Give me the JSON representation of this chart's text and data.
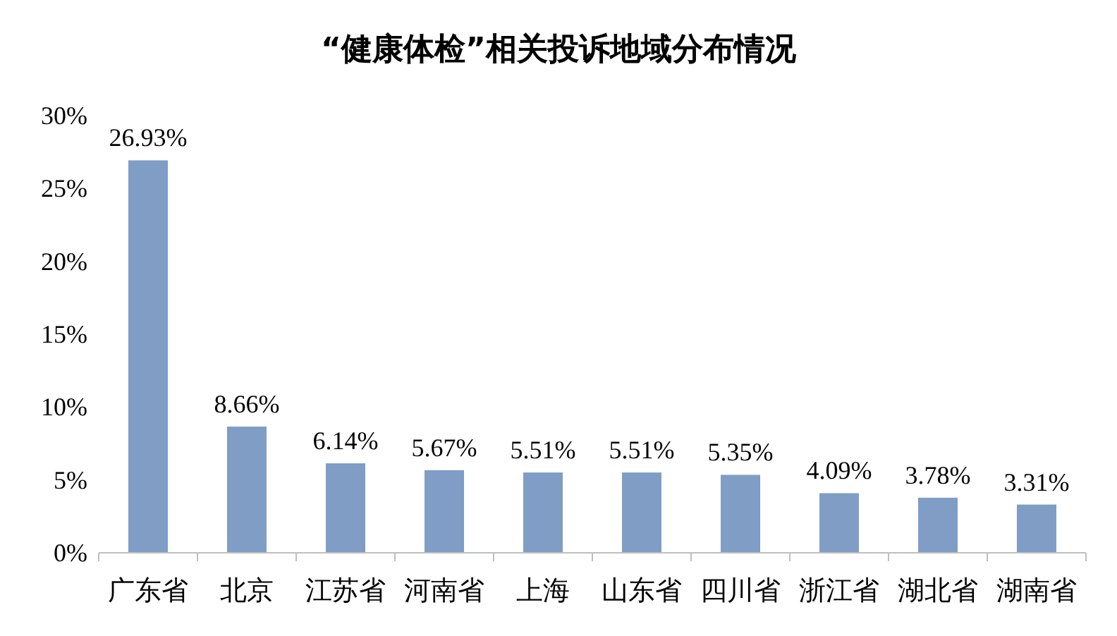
{
  "chart_data": {
    "type": "bar",
    "title": "“健康体检”相关投诉地域分布情况",
    "categories": [
      "广东省",
      "北京",
      "江苏省",
      "河南省",
      "上海",
      "山东省",
      "四川省",
      "浙江省",
      "湖北省",
      "湖南省"
    ],
    "values": [
      26.93,
      8.66,
      6.14,
      5.67,
      5.51,
      5.51,
      5.35,
      4.09,
      3.78,
      3.31
    ],
    "value_labels": [
      "26.93%",
      "8.66%",
      "6.14%",
      "5.67%",
      "5.51%",
      "5.51%",
      "5.35%",
      "4.09%",
      "3.78%",
      "3.31%"
    ],
    "color": "#7f9dc5",
    "ylim": [
      0,
      30
    ],
    "yticks": [
      {
        "value": 0,
        "label": "0%"
      },
      {
        "value": 5,
        "label": "5%"
      },
      {
        "value": 10,
        "label": "10%"
      },
      {
        "value": 15,
        "label": "15%"
      },
      {
        "value": 20,
        "label": "20%"
      },
      {
        "value": 25,
        "label": "25%"
      },
      {
        "value": 30,
        "label": "30%"
      }
    ]
  }
}
